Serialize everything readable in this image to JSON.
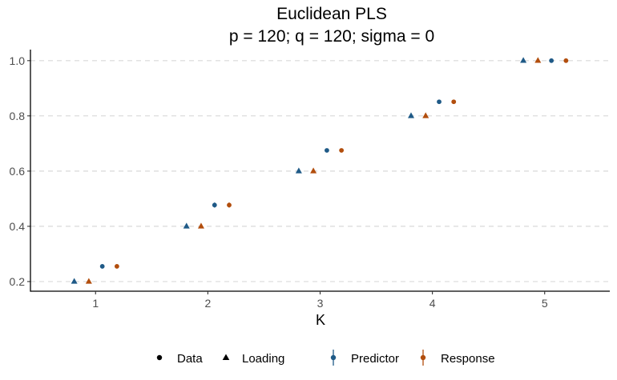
{
  "chart_data": {
    "type": "scatter",
    "title": "Euclidean PLS",
    "subtitle": "p = 120; q = 120; sigma = 0",
    "xlabel": "K",
    "ylabel": "",
    "xlim": [
      0.42,
      5.58
    ],
    "ylim": [
      0.165,
      1.04
    ],
    "x_ticks": [
      1,
      2,
      3,
      4,
      5
    ],
    "y_ticks": [
      0.2,
      0.4,
      0.6,
      0.8,
      1.0
    ],
    "y_tick_labels": [
      "0.2",
      "0.4",
      "0.6",
      "0.8",
      "1.0"
    ],
    "grid": "horizontal-dashed",
    "legend_position": "bottom",
    "dodge_order": [
      "Predictor-Loading",
      "Response-Loading",
      "Predictor-Data",
      "Response-Data"
    ],
    "dodge_offsets": [
      -0.19,
      -0.06,
      0.06,
      0.19
    ],
    "series": [
      {
        "name": "Predictor",
        "color": "#1f5a87",
        "data": [
          {
            "K": 1,
            "shape": "Loading",
            "y": 0.2,
            "err": 0
          },
          {
            "K": 1,
            "shape": "Data",
            "y": 0.255,
            "err": 0.006
          },
          {
            "K": 2,
            "shape": "Loading",
            "y": 0.4,
            "err": 0
          },
          {
            "K": 2,
            "shape": "Data",
            "y": 0.477,
            "err": 0.009
          },
          {
            "K": 3,
            "shape": "Loading",
            "y": 0.6,
            "err": 0
          },
          {
            "K": 3,
            "shape": "Data",
            "y": 0.675,
            "err": 0.003
          },
          {
            "K": 4,
            "shape": "Loading",
            "y": 0.8,
            "err": 0
          },
          {
            "K": 4,
            "shape": "Data",
            "y": 0.851,
            "err": 0.002
          },
          {
            "K": 5,
            "shape": "Loading",
            "y": 1.0,
            "err": 0
          },
          {
            "K": 5,
            "shape": "Data",
            "y": 1.0,
            "err": 0
          }
        ]
      },
      {
        "name": "Response",
        "color": "#b24e0d",
        "data": [
          {
            "K": 1,
            "shape": "Loading",
            "y": 0.2,
            "err": 0
          },
          {
            "K": 1,
            "shape": "Data",
            "y": 0.255,
            "err": 0.006
          },
          {
            "K": 2,
            "shape": "Loading",
            "y": 0.4,
            "err": 0
          },
          {
            "K": 2,
            "shape": "Data",
            "y": 0.477,
            "err": 0.009
          },
          {
            "K": 3,
            "shape": "Loading",
            "y": 0.6,
            "err": 0
          },
          {
            "K": 3,
            "shape": "Data",
            "y": 0.675,
            "err": 0.003
          },
          {
            "K": 4,
            "shape": "Loading",
            "y": 0.8,
            "err": 0
          },
          {
            "K": 4,
            "shape": "Data",
            "y": 0.851,
            "err": 0.002
          },
          {
            "K": 5,
            "shape": "Loading",
            "y": 1.0,
            "err": 0
          },
          {
            "K": 5,
            "shape": "Data",
            "y": 1.0,
            "err": 0
          }
        ]
      }
    ],
    "legend": {
      "shapes": [
        {
          "label": "Data",
          "marker": "circle"
        },
        {
          "label": "Loading",
          "marker": "triangle"
        }
      ],
      "colors": [
        {
          "label": "Predictor",
          "color": "#1f5a87"
        },
        {
          "label": "Response",
          "color": "#b24e0d"
        }
      ]
    }
  }
}
